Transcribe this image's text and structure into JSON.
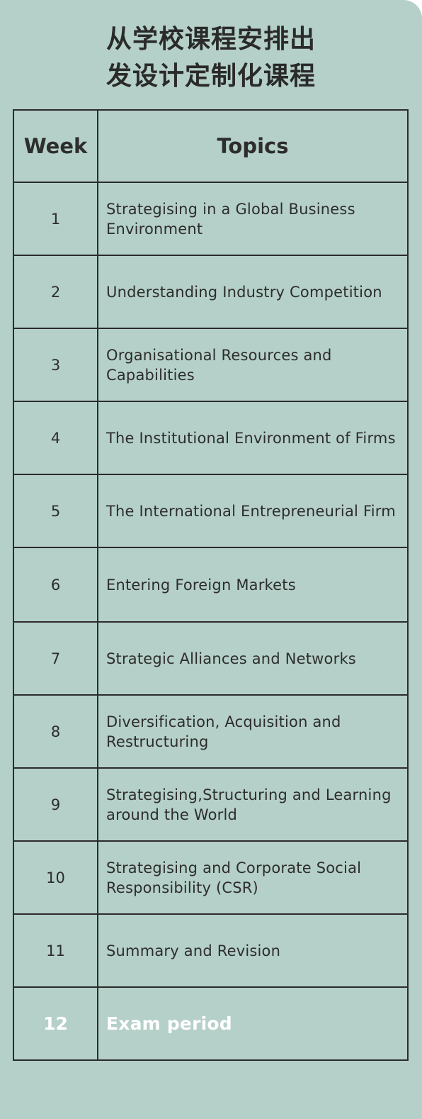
{
  "title": {
    "line1": "从学校课程安排出",
    "line2": "发设计定制化课程"
  },
  "table": {
    "headers": {
      "week": "Week",
      "topics": "Topics"
    },
    "rows": [
      {
        "week": "1",
        "topic": "Strategising in a Global Business Environment"
      },
      {
        "week": "2",
        "topic": "Understanding Industry Competition"
      },
      {
        "week": "3",
        "topic": "Organisational Resources and Capabilities"
      },
      {
        "week": "4",
        "topic": "The Institutional Environment of Firms"
      },
      {
        "week": "5",
        "topic": "The International Entrepreneurial Firm"
      },
      {
        "week": "6",
        "topic": "Entering Foreign Markets"
      },
      {
        "week": "7",
        "topic": "Strategic Alliances and Networks"
      },
      {
        "week": "8",
        "topic": "Diversification, Acquisition and Restructuring"
      },
      {
        "week": "9",
        "topic": "Strategising,Structuring and Learning around the World"
      },
      {
        "week": "10",
        "topic": "Strategising and Corporate Social Responsibility (CSR)"
      },
      {
        "week": "11",
        "topic": "Summary and Revision"
      },
      {
        "week": "12",
        "topic": "Exam period"
      }
    ]
  },
  "colors": {
    "background": "#b5d0c8",
    "text": "#2d2d2d",
    "border": "#2b2b2b",
    "highlight_text": "#ffffff"
  }
}
